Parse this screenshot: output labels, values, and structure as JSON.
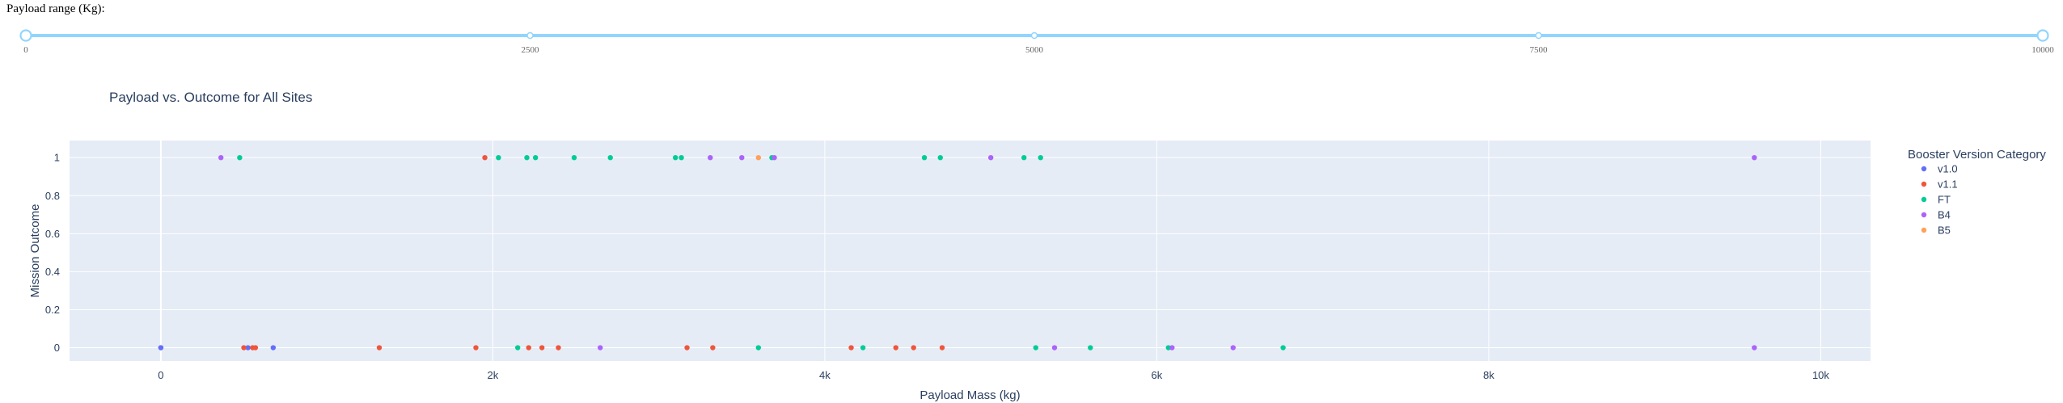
{
  "slider": {
    "label": "Payload range (Kg):",
    "min": 0,
    "max": 10000,
    "value": [
      0,
      10000
    ],
    "marks": [
      "0",
      "2500",
      "5000",
      "7500",
      "10000"
    ],
    "track_color": "#91d5ff",
    "handle_color": "#91d5ff"
  },
  "chart_data": {
    "type": "scatter",
    "title": "Payload vs. Outcome for All Sites",
    "xlabel": "Payload Mass (kg)",
    "ylabel": "Mission Outcome",
    "xlim": [
      -550,
      10300
    ],
    "ylim": [
      -0.07,
      1.09
    ],
    "xticks": [
      0,
      2000,
      4000,
      6000,
      8000,
      10000
    ],
    "xtick_labels": [
      "0",
      "2k",
      "4k",
      "6k",
      "8k",
      "10k"
    ],
    "yticks": [
      0,
      0.2,
      0.4,
      0.6,
      0.8,
      1
    ],
    "ytick_labels": [
      "0",
      "0.2",
      "0.4",
      "0.6",
      "0.8",
      "1"
    ],
    "grid": true,
    "plot_bgcolor": "#e5ecf6",
    "legend_title": "Booster Version Category",
    "legend_position": "right",
    "series": [
      {
        "name": "v1.0",
        "color": "#636efa",
        "points": [
          [
            0,
            0
          ],
          [
            525,
            0
          ],
          [
            677,
            0
          ],
          [
            0,
            0
          ]
        ]
      },
      {
        "name": "v1.1",
        "color": "#ef553b",
        "points": [
          [
            500,
            0
          ],
          [
            553,
            0
          ],
          [
            570,
            0
          ],
          [
            1316,
            0
          ],
          [
            1898,
            0
          ],
          [
            1952,
            1
          ],
          [
            2216,
            0
          ],
          [
            2296,
            0
          ],
          [
            2395,
            0
          ],
          [
            3170,
            0
          ],
          [
            3325,
            0
          ],
          [
            4159,
            0
          ],
          [
            4428,
            0
          ],
          [
            4535,
            0
          ],
          [
            4707,
            0
          ]
        ]
      },
      {
        "name": "FT",
        "color": "#00cc96",
        "points": [
          [
            475,
            1
          ],
          [
            2034,
            1
          ],
          [
            2150,
            0
          ],
          [
            2205,
            1
          ],
          [
            2257,
            1
          ],
          [
            2490,
            1
          ],
          [
            2708,
            1
          ],
          [
            3100,
            1
          ],
          [
            3136,
            1
          ],
          [
            3600,
            0
          ],
          [
            3681,
            1
          ],
          [
            4230,
            0
          ],
          [
            4600,
            1
          ],
          [
            4696,
            1
          ],
          [
            5200,
            1
          ],
          [
            5300,
            1
          ],
          [
            5271,
            0
          ],
          [
            5600,
            0
          ],
          [
            6070,
            0
          ],
          [
            6761,
            0
          ]
        ]
      },
      {
        "name": "B4",
        "color": "#ab63fa",
        "points": [
          [
            362,
            1
          ],
          [
            2647,
            0
          ],
          [
            3310,
            1
          ],
          [
            3500,
            1
          ],
          [
            3696,
            1
          ],
          [
            5000,
            1
          ],
          [
            5384,
            0
          ],
          [
            6092,
            0
          ],
          [
            6460,
            0
          ],
          [
            9600,
            1
          ],
          [
            9600,
            0
          ]
        ]
      },
      {
        "name": "B5",
        "color": "#ffa15a",
        "points": [
          [
            3600,
            1
          ]
        ]
      }
    ]
  }
}
